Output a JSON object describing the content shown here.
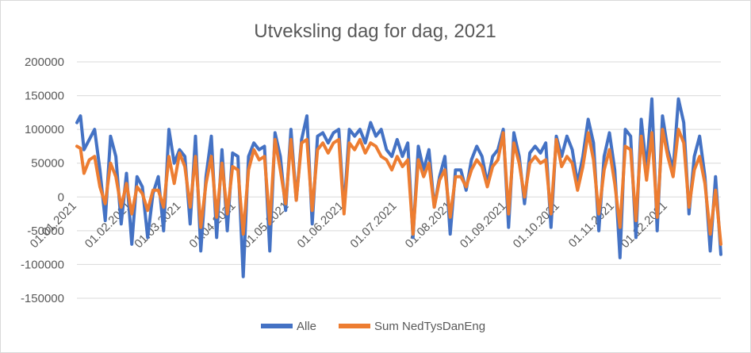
{
  "chart_data": {
    "type": "line",
    "title": "Utveksling dag for dag, 2021",
    "xlabel": "",
    "ylabel": "",
    "ylim": [
      -150000,
      200000
    ],
    "yticks": [
      "200000",
      "150000",
      "100000",
      "50000",
      "0",
      "-50000",
      "-100000",
      "-150000"
    ],
    "ytick_values": [
      200000,
      150000,
      100000,
      50000,
      0,
      -50000,
      -100000,
      -150000
    ],
    "xticks": [
      "01.01.2021",
      "01.02.2021",
      "01.03.2021",
      "01.04.2021",
      "01.05.2021",
      "01.06.2021",
      "01.07.2021",
      "01.08.2021",
      "01.09.2021",
      "01.10.2021",
      "01.11.2021",
      "01.12.2021"
    ],
    "xtick_days": [
      1,
      32,
      60,
      91,
      121,
      152,
      182,
      213,
      244,
      274,
      305,
      335
    ],
    "x_days_total": 365,
    "grid": true,
    "legend_position": "bottom",
    "series": [
      {
        "name": "Alle",
        "color": "#4472c4",
        "day": [
          1,
          3,
          5,
          8,
          11,
          14,
          17,
          20,
          23,
          26,
          29,
          32,
          35,
          38,
          41,
          44,
          47,
          50,
          53,
          56,
          59,
          62,
          65,
          68,
          71,
          74,
          77,
          80,
          83,
          86,
          89,
          92,
          95,
          98,
          101,
          104,
          107,
          110,
          113,
          116,
          119,
          122,
          125,
          128,
          131,
          134,
          137,
          140,
          143,
          146,
          149,
          152,
          155,
          158,
          161,
          164,
          167,
          170,
          173,
          176,
          179,
          182,
          185,
          188,
          191,
          194,
          197,
          200,
          203,
          206,
          209,
          212,
          215,
          218,
          221,
          224,
          227,
          230,
          233,
          236,
          239,
          242,
          245,
          248,
          251,
          254,
          257,
          260,
          263,
          266,
          269,
          272,
          275,
          278,
          281,
          284,
          287,
          290,
          293,
          296,
          299,
          302,
          305,
          308,
          311,
          314,
          317,
          320,
          323,
          326,
          329,
          332,
          335,
          338,
          341,
          344,
          347,
          350,
          353,
          356,
          359,
          362,
          365
        ],
        "values": [
          110000,
          120000,
          70000,
          85000,
          100000,
          40000,
          -35000,
          90000,
          60000,
          -40000,
          35000,
          -70000,
          30000,
          15000,
          -60000,
          5000,
          30000,
          -50000,
          100000,
          50000,
          70000,
          60000,
          -40000,
          90000,
          -80000,
          30000,
          90000,
          -60000,
          70000,
          -50000,
          65000,
          60000,
          -118000,
          60000,
          80000,
          70000,
          75000,
          -80000,
          95000,
          60000,
          -20000,
          100000,
          -5000,
          85000,
          120000,
          -40000,
          90000,
          95000,
          80000,
          95000,
          100000,
          -20000,
          100000,
          90000,
          100000,
          80000,
          110000,
          90000,
          100000,
          70000,
          60000,
          85000,
          60000,
          80000,
          -60000,
          75000,
          40000,
          70000,
          -15000,
          30000,
          60000,
          -55000,
          40000,
          40000,
          10000,
          55000,
          75000,
          60000,
          20000,
          60000,
          70000,
          100000,
          -45000,
          95000,
          60000,
          -10000,
          65000,
          75000,
          65000,
          80000,
          -45000,
          90000,
          60000,
          90000,
          70000,
          20000,
          60000,
          115000,
          80000,
          -50000,
          60000,
          95000,
          40000,
          -90000,
          100000,
          90000,
          -60000,
          115000,
          40000,
          145000,
          -50000,
          120000,
          70000,
          40000,
          145000,
          110000,
          -25000,
          60000,
          90000,
          30000,
          -80000,
          30000,
          -85000
        ]
      },
      {
        "name": "Sum NedTysDanEng",
        "color": "#ed7d31",
        "day": [
          1,
          3,
          5,
          8,
          11,
          14,
          17,
          20,
          23,
          26,
          29,
          32,
          35,
          38,
          41,
          44,
          47,
          50,
          53,
          56,
          59,
          62,
          65,
          68,
          71,
          74,
          77,
          80,
          83,
          86,
          89,
          92,
          95,
          98,
          101,
          104,
          107,
          110,
          113,
          116,
          119,
          122,
          125,
          128,
          131,
          134,
          137,
          140,
          143,
          146,
          149,
          152,
          155,
          158,
          161,
          164,
          167,
          170,
          173,
          176,
          179,
          182,
          185,
          188,
          191,
          194,
          197,
          200,
          203,
          206,
          209,
          212,
          215,
          218,
          221,
          224,
          227,
          230,
          233,
          236,
          239,
          242,
          245,
          248,
          251,
          254,
          257,
          260,
          263,
          266,
          269,
          272,
          275,
          278,
          281,
          284,
          287,
          290,
          293,
          296,
          299,
          302,
          305,
          308,
          311,
          314,
          317,
          320,
          323,
          326,
          329,
          332,
          335,
          338,
          341,
          344,
          347,
          350,
          353,
          356,
          359,
          362,
          365
        ],
        "values": [
          75000,
          72000,
          35000,
          55000,
          60000,
          15000,
          -10000,
          50000,
          30000,
          -15000,
          20000,
          -25000,
          15000,
          5000,
          -20000,
          10000,
          10000,
          -15000,
          60000,
          20000,
          65000,
          45000,
          -15000,
          60000,
          -45000,
          20000,
          60000,
          -30000,
          50000,
          -25000,
          45000,
          40000,
          -55000,
          40000,
          70000,
          55000,
          60000,
          -40000,
          85000,
          40000,
          -10000,
          85000,
          -5000,
          80000,
          85000,
          -20000,
          70000,
          80000,
          65000,
          80000,
          85000,
          -25000,
          80000,
          70000,
          85000,
          65000,
          80000,
          75000,
          60000,
          55000,
          40000,
          60000,
          45000,
          55000,
          -55000,
          55000,
          30000,
          50000,
          -15000,
          25000,
          40000,
          -30000,
          30000,
          30000,
          15000,
          40000,
          55000,
          45000,
          15000,
          45000,
          55000,
          95000,
          -25000,
          80000,
          50000,
          0,
          50000,
          60000,
          50000,
          55000,
          -25000,
          85000,
          45000,
          60000,
          50000,
          10000,
          45000,
          95000,
          55000,
          -25000,
          40000,
          70000,
          20000,
          -45000,
          75000,
          70000,
          -35000,
          90000,
          25000,
          95000,
          -30000,
          100000,
          60000,
          30000,
          100000,
          80000,
          -15000,
          40000,
          60000,
          20000,
          -55000,
          10000,
          -70000
        ]
      }
    ]
  }
}
